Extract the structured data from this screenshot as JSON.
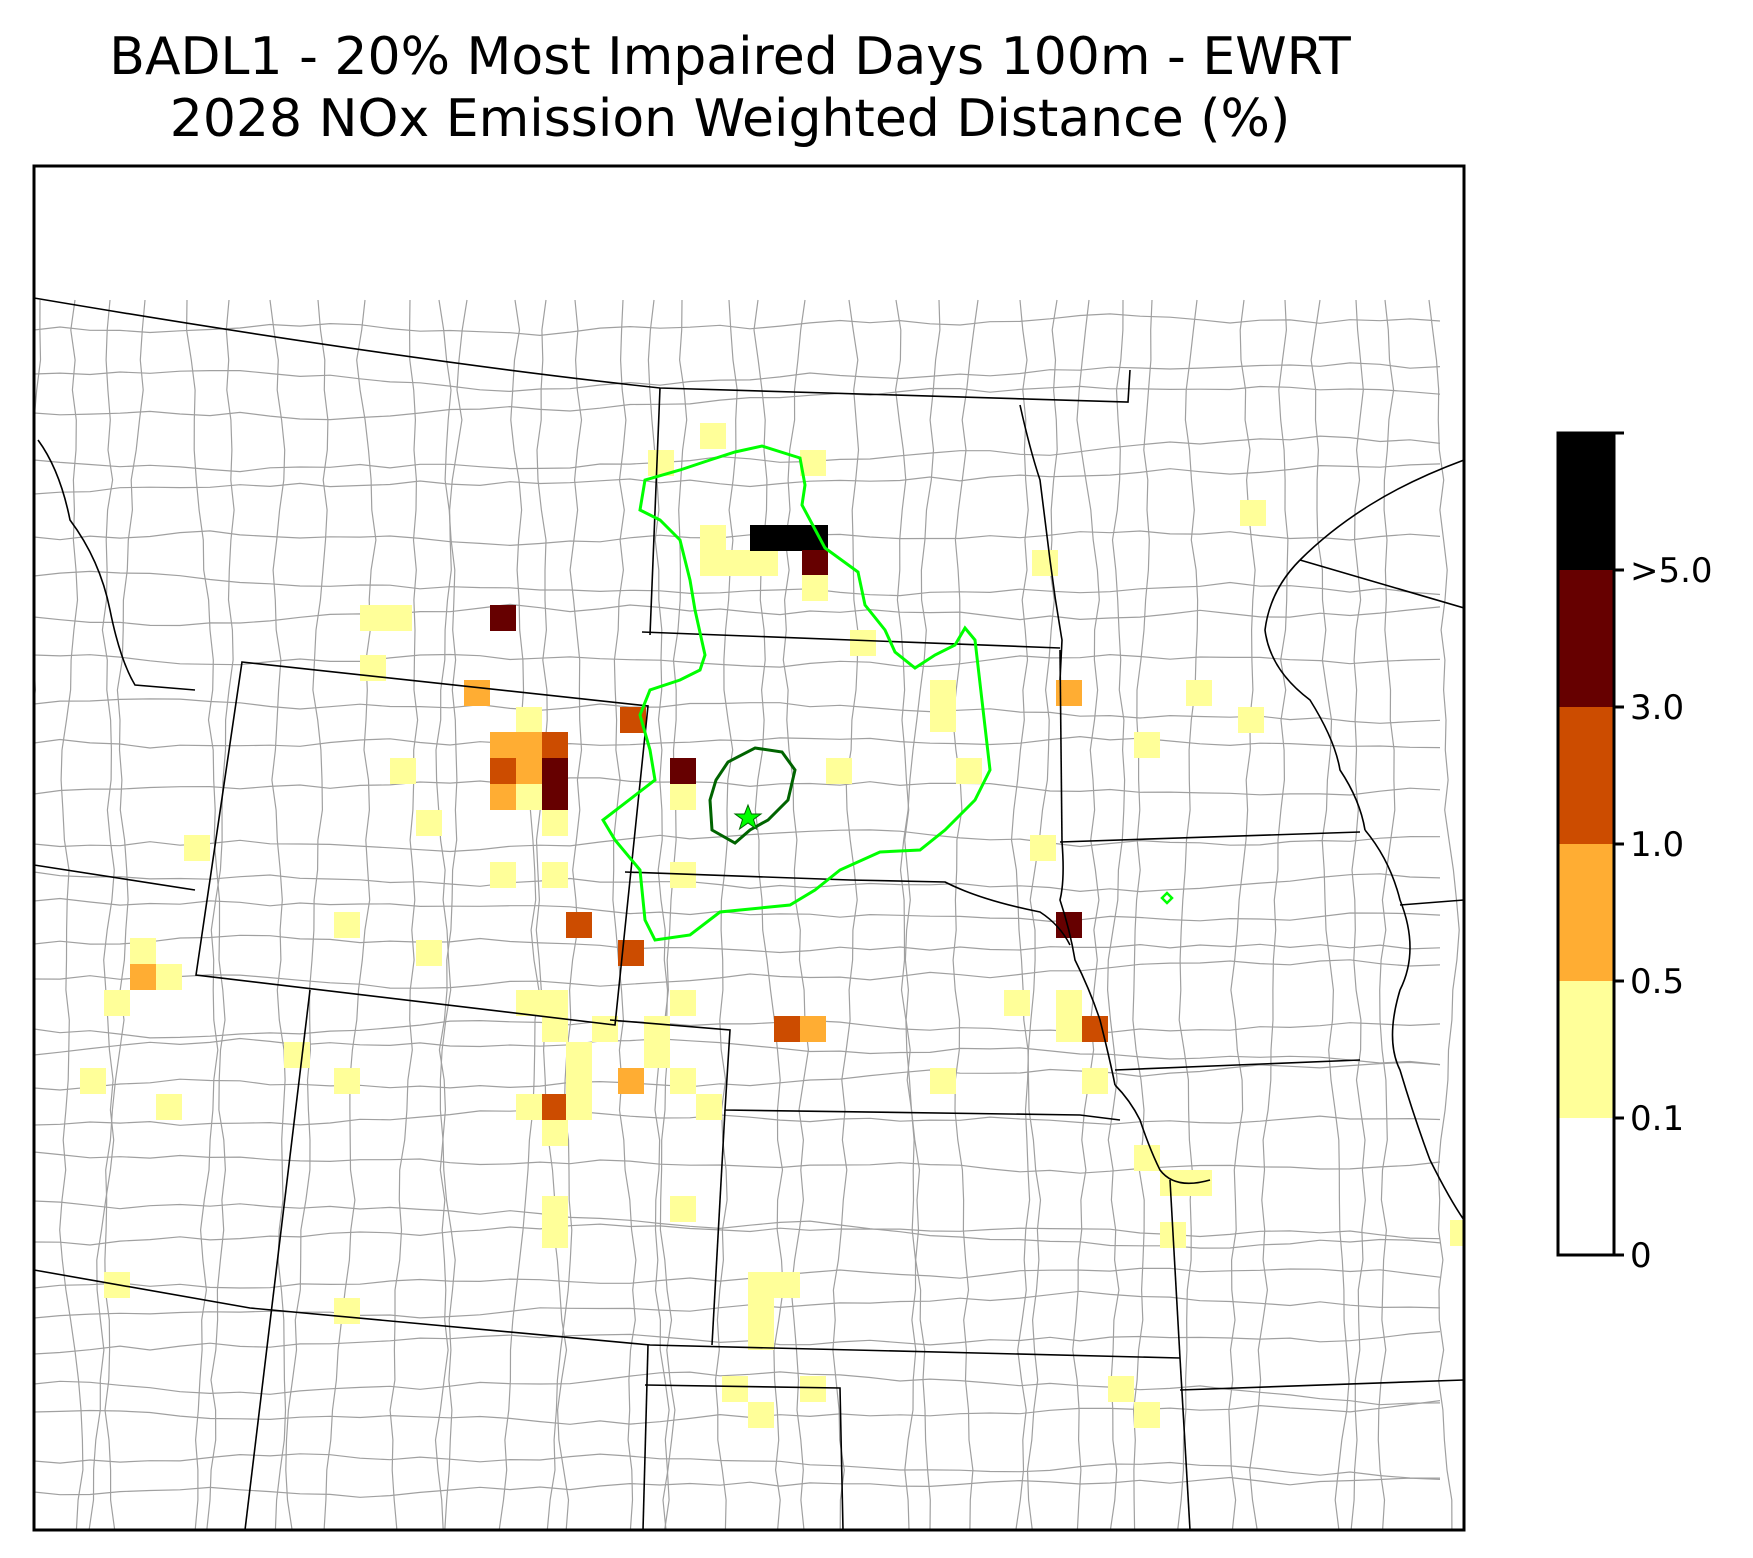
{
  "title": {
    "line1": "BADL1 - 20% Most Impaired Days 100m - EWRT",
    "line2": "2028 NOx Emission Weighted Distance (%)"
  },
  "colorbar": {
    "bins": [
      {
        "label": "0",
        "color": "#ffffff"
      },
      {
        "label": "0.1",
        "color": "#ffff99"
      },
      {
        "label": "0.5",
        "color": "#ffad33"
      },
      {
        "label": "1.0",
        "color": "#cc4c00"
      },
      {
        "label": "3.0",
        "color": "#660000"
      },
      {
        "label": ">5.0",
        "color": "#000000"
      }
    ]
  },
  "legend_colors": {
    "outer_contour": "#00ff00",
    "inner_contour": "#006400",
    "site_marker": "#00ff00",
    "state_borders": "#000000",
    "county_borders": "#a0a0a0"
  },
  "site_marker_icon": "star-icon"
}
